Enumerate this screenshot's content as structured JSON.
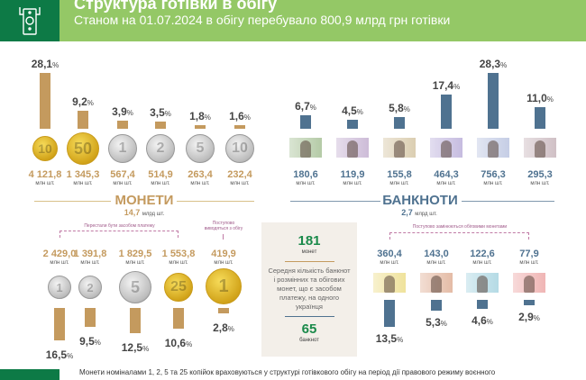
{
  "header": {
    "title": "Структура готівки в обігу",
    "subtitle": "Станом на 01.07.2024 в обігу перебувало 800,9 млрд грн готівки",
    "icon": "cash-atm-icon"
  },
  "colors": {
    "coin_bar": "#c49a5e",
    "banknote_bar": "#4f7290",
    "coin_value": "#c49a5e",
    "banknote_value": "#4f7290",
    "header_green": "#94c866",
    "dark_green": "#0d7a46",
    "stat_green": "#1a8a4a"
  },
  "unit": "млн шт.",
  "pct_sign": "%",
  "coins": {
    "section_title": "МОНЕТИ",
    "total": "14,7",
    "total_unit": "млрд шт.",
    "items": [
      {
        "denom": "10",
        "pct": "28,1",
        "pct_value": 28.1,
        "value": "4 121,8",
        "metal": "gold"
      },
      {
        "denom": "50",
        "pct": "9,2",
        "pct_value": 9.2,
        "value": "1 345,3",
        "metal": "gold"
      },
      {
        "denom": "1",
        "pct": "3,9",
        "pct_value": 3.9,
        "value": "567,4",
        "metal": "silver"
      },
      {
        "denom": "2",
        "pct": "3,5",
        "pct_value": 3.5,
        "value": "514,9",
        "metal": "silver"
      },
      {
        "denom": "5",
        "pct": "1,8",
        "pct_value": 1.8,
        "value": "263,4",
        "metal": "silver"
      },
      {
        "denom": "10",
        "pct": "1,6",
        "pct_value": 1.6,
        "value": "232,4",
        "metal": "silver"
      }
    ],
    "old_label": "Перестали бути засобом платежу",
    "withdrawn_label": "Поступово виводяться з обігу",
    "old_items": [
      {
        "denom": "1",
        "pct": "16,5",
        "pct_value": 16.5,
        "value": "2 429,0",
        "metal": "silver"
      },
      {
        "denom": "2",
        "pct": "9,5",
        "pct_value": 9.5,
        "value": "1 391,8",
        "metal": "silver"
      },
      {
        "denom": "5",
        "pct": "12,5",
        "pct_value": 12.5,
        "value": "1 829,5",
        "metal": "silver"
      },
      {
        "denom": "25",
        "pct": "10,6",
        "pct_value": 10.6,
        "value": "1 553,8",
        "metal": "gold"
      },
      {
        "denom": "1",
        "pct": "2,8",
        "pct_value": 2.8,
        "value": "419,9",
        "metal": "gold"
      }
    ]
  },
  "banknotes": {
    "section_title": "БАНКНОТИ",
    "total": "2,7",
    "total_unit": "млрд шт.",
    "items": [
      {
        "denom": "20",
        "pct": "6,7",
        "pct_value": 6.7,
        "value": "180,6",
        "color": "#8fb07a"
      },
      {
        "denom": "50",
        "pct": "4,5",
        "pct_value": 4.5,
        "value": "119,9",
        "color": "#b49ac4"
      },
      {
        "denom": "100",
        "pct": "5,8",
        "pct_value": 5.8,
        "value": "155,8",
        "color": "#c9b58a"
      },
      {
        "denom": "200",
        "pct": "17,4",
        "pct_value": 17.4,
        "value": "464,3",
        "color": "#a99ad0"
      },
      {
        "denom": "500",
        "pct": "28,3",
        "pct_value": 28.3,
        "value": "756,3",
        "color": "#a8b4d8"
      },
      {
        "denom": "1000",
        "pct": "11,0",
        "pct_value": 11.0,
        "value": "295,3",
        "color": "#b8a0a8"
      }
    ],
    "replaced_label": "Поступово замінюються обіговими монетами",
    "old_items": [
      {
        "denom": "1",
        "pct": "13,5",
        "pct_value": 13.5,
        "value": "360,4",
        "color": "#e8d46a"
      },
      {
        "denom": "2",
        "pct": "5,3",
        "pct_value": 5.3,
        "value": "143,0",
        "color": "#d79a7a"
      },
      {
        "denom": "5",
        "pct": "4,6",
        "pct_value": 4.6,
        "value": "122,6",
        "color": "#8fc8d8"
      },
      {
        "denom": "10",
        "pct": "2,9",
        "pct_value": 2.9,
        "value": "77,9",
        "color": "#e8908f"
      }
    ]
  },
  "per_capita": {
    "coins": "181",
    "coins_label": "монет",
    "description": "Середня кількість банкнот і розмінних та обігових монет, що є засобом платежу, на одного українця",
    "banknotes": "65",
    "banknotes_label": "банкнот"
  },
  "footer": {
    "note": "Монети номіналами 1, 2, 5 та 25 копійок враховуються у структурі готівкового обігу на період дії правового режиму воєнного"
  }
}
